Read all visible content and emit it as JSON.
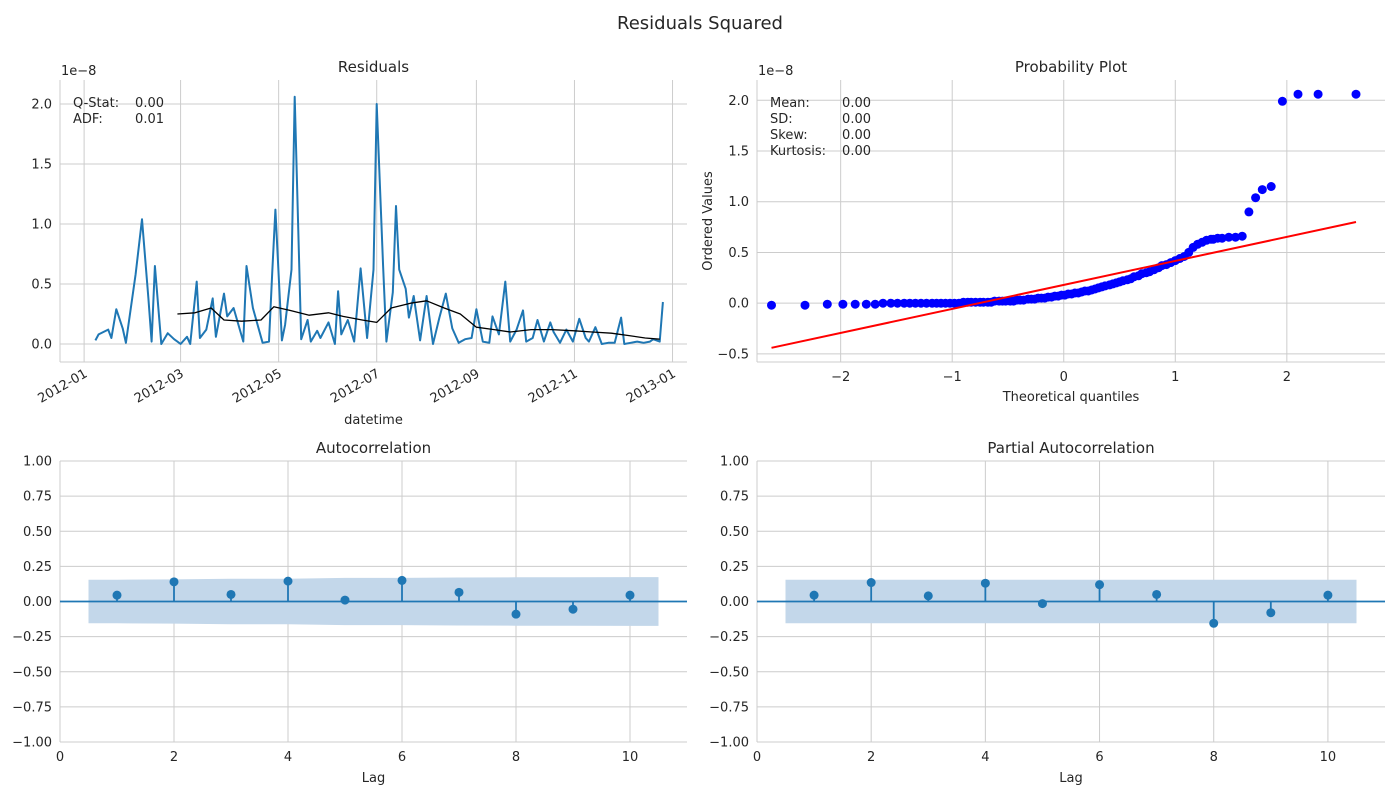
{
  "figure": {
    "title": "Residuals Squared"
  },
  "chart_data": [
    {
      "id": "residuals",
      "type": "line",
      "title": "Residuals",
      "xlabel": "datetime",
      "ylabel": "",
      "y_offset_label": "1e−8",
      "x_is_date": true,
      "xlim": [
        "2011-12-17",
        "2013-01-10"
      ],
      "ylim": [
        -0.15,
        2.2
      ],
      "xticks": [
        "2012-01-01",
        "2012-03-01",
        "2012-05-01",
        "2012-07-01",
        "2012-09-01",
        "2012-11-01",
        "2013-01-01"
      ],
      "xtick_labels": [
        "2012-01",
        "2012-03",
        "2012-05",
        "2012-07",
        "2012-09",
        "2012-11",
        "2013-01"
      ],
      "yticks": [
        0.0,
        0.5,
        1.0,
        1.5,
        2.0
      ],
      "ytick_labels": [
        "0.0",
        "0.5",
        "1.0",
        "1.5",
        "2.0"
      ],
      "stats": [
        {
          "label": "Q-Stat:",
          "value": "0.00"
        },
        {
          "label": "ADF:",
          "value": "0.01"
        }
      ],
      "series": [
        {
          "color": "#1f77b4",
          "x": [
            "2012-01-08",
            "2012-01-10",
            "2012-01-16",
            "2012-01-18",
            "2012-01-21",
            "2012-01-25",
            "2012-01-27",
            "2012-02-02",
            "2012-02-06",
            "2012-02-10",
            "2012-02-12",
            "2012-02-14",
            "2012-02-18",
            "2012-02-22",
            "2012-02-26",
            "2012-02-28",
            "2012-03-01",
            "2012-03-05",
            "2012-03-07",
            "2012-03-11",
            "2012-03-13",
            "2012-03-17",
            "2012-03-21",
            "2012-03-23",
            "2012-03-28",
            "2012-03-30",
            "2012-04-03",
            "2012-04-09",
            "2012-04-11",
            "2012-04-15",
            "2012-04-21",
            "2012-04-25",
            "2012-04-27",
            "2012-04-29",
            "2012-05-03",
            "2012-05-05",
            "2012-05-09",
            "2012-05-11",
            "2012-05-15",
            "2012-05-19",
            "2012-05-21",
            "2012-05-25",
            "2012-05-27",
            "2012-06-01",
            "2012-06-05",
            "2012-06-07",
            "2012-06-09",
            "2012-06-13",
            "2012-06-17",
            "2012-06-21",
            "2012-06-25",
            "2012-06-29",
            "2012-07-01",
            "2012-07-05",
            "2012-07-07",
            "2012-07-11",
            "2012-07-13",
            "2012-07-15",
            "2012-07-19",
            "2012-07-21",
            "2012-07-24",
            "2012-07-28",
            "2012-08-01",
            "2012-08-05",
            "2012-08-09",
            "2012-08-13",
            "2012-08-17",
            "2012-08-21",
            "2012-08-25",
            "2012-08-29",
            "2012-09-01",
            "2012-09-05",
            "2012-09-09",
            "2012-09-11",
            "2012-09-15",
            "2012-09-19",
            "2012-09-22",
            "2012-09-26",
            "2012-09-30",
            "2012-10-02",
            "2012-10-06",
            "2012-10-09",
            "2012-10-13",
            "2012-10-17",
            "2012-10-19",
            "2012-10-23",
            "2012-10-27",
            "2012-10-31",
            "2012-11-04",
            "2012-11-08",
            "2012-11-10",
            "2012-11-14",
            "2012-11-18",
            "2012-11-22",
            "2012-11-26",
            "2012-11-30",
            "2012-12-02",
            "2012-12-06",
            "2012-12-10",
            "2012-12-14",
            "2012-12-18",
            "2012-12-20",
            "2012-12-24",
            "2012-12-26"
          ],
          "y": [
            0.03,
            0.08,
            0.12,
            0.05,
            0.29,
            0.13,
            0.01,
            0.58,
            1.04,
            0.38,
            0.02,
            0.65,
            0.0,
            0.09,
            0.04,
            0.02,
            0.0,
            0.06,
            0.0,
            0.52,
            0.05,
            0.12,
            0.38,
            0.06,
            0.42,
            0.23,
            0.3,
            0.02,
            0.65,
            0.3,
            0.01,
            0.02,
            0.59,
            1.12,
            0.03,
            0.16,
            0.62,
            2.06,
            0.04,
            0.2,
            0.02,
            0.11,
            0.05,
            0.18,
            0.0,
            0.44,
            0.08,
            0.2,
            0.02,
            0.63,
            0.05,
            0.62,
            2.0,
            0.65,
            0.02,
            0.43,
            1.15,
            0.62,
            0.46,
            0.22,
            0.4,
            0.03,
            0.4,
            0.0,
            0.22,
            0.42,
            0.13,
            0.01,
            0.04,
            0.05,
            0.29,
            0.02,
            0.01,
            0.23,
            0.08,
            0.52,
            0.02,
            0.12,
            0.28,
            0.02,
            0.05,
            0.2,
            0.02,
            0.18,
            0.1,
            0.01,
            0.12,
            0.02,
            0.21,
            0.05,
            0.02,
            0.14,
            0.0,
            0.01,
            0.01,
            0.22,
            0.0,
            0.01,
            0.02,
            0.01,
            0.02,
            0.04,
            0.02,
            0.35
          ]
        },
        {
          "color": "#000000",
          "x": [
            "2012-02-28",
            "2012-03-10",
            "2012-03-20",
            "2012-03-28",
            "2012-04-08",
            "2012-04-20",
            "2012-04-28",
            "2012-05-08",
            "2012-05-20",
            "2012-06-01",
            "2012-06-10",
            "2012-06-22",
            "2012-07-01",
            "2012-07-10",
            "2012-07-22",
            "2012-08-01",
            "2012-08-12",
            "2012-08-22",
            "2012-09-01",
            "2012-09-12",
            "2012-09-22",
            "2012-10-05",
            "2012-10-18",
            "2012-11-01",
            "2012-11-12",
            "2012-11-24",
            "2012-12-05",
            "2012-12-15",
            "2012-12-24"
          ],
          "y": [
            0.25,
            0.26,
            0.3,
            0.2,
            0.19,
            0.2,
            0.31,
            0.28,
            0.24,
            0.26,
            0.23,
            0.2,
            0.18,
            0.3,
            0.34,
            0.36,
            0.3,
            0.25,
            0.14,
            0.12,
            0.1,
            0.12,
            0.12,
            0.11,
            0.1,
            0.09,
            0.07,
            0.05,
            0.04
          ]
        }
      ]
    },
    {
      "id": "probplot",
      "type": "scatter",
      "title": "Probability Plot",
      "xlabel": "Theoretical quantiles",
      "ylabel": "Ordered Values",
      "y_offset_label": "1e−8",
      "xlim": [
        -2.75,
        2.88
      ],
      "ylim": [
        -0.58,
        2.2
      ],
      "xticks": [
        -2,
        -1,
        0,
        1,
        2
      ],
      "xtick_labels": [
        "−2",
        "−1",
        "0",
        "1",
        "2"
      ],
      "yticks": [
        -0.5,
        0.0,
        0.5,
        1.0,
        1.5,
        2.0
      ],
      "ytick_labels": [
        "−0.5",
        "0.0",
        "0.5",
        "1.0",
        "1.5",
        "2.0"
      ],
      "stats": [
        {
          "label": "Mean:",
          "value": "0.00"
        },
        {
          "label": "SD:",
          "value": "0.00"
        },
        {
          "label": "Skew:",
          "value": "0.00"
        },
        {
          "label": "Kurtosis:",
          "value": "0.00"
        }
      ],
      "points_color": "#0000ff",
      "line_color": "#ff0000",
      "fit_line": {
        "x": [
          -2.62,
          2.62
        ],
        "y": [
          -0.44,
          0.8
        ]
      },
      "points": {
        "x": [
          -2.62,
          -2.32,
          -2.12,
          -1.98,
          -1.87,
          -1.77,
          -1.69,
          -1.62,
          -1.55,
          -1.49,
          -1.43,
          -1.38,
          -1.33,
          -1.28,
          -1.23,
          -1.18,
          -1.14,
          -1.1,
          -1.06,
          -1.02,
          -0.98,
          -0.94,
          -0.9,
          -0.86,
          -0.83,
          -0.79,
          -0.75,
          -0.72,
          -0.68,
          -0.65,
          -0.62,
          -0.58,
          -0.55,
          -0.52,
          -0.48,
          -0.45,
          -0.42,
          -0.39,
          -0.36,
          -0.32,
          -0.29,
          -0.26,
          -0.23,
          -0.2,
          -0.17,
          -0.14,
          -0.11,
          -0.08,
          -0.05,
          -0.02,
          0.01,
          0.04,
          0.07,
          0.1,
          0.13,
          0.16,
          0.19,
          0.22,
          0.25,
          0.28,
          0.31,
          0.34,
          0.37,
          0.41,
          0.44,
          0.47,
          0.5,
          0.53,
          0.57,
          0.6,
          0.63,
          0.67,
          0.7,
          0.74,
          0.77,
          0.81,
          0.85,
          0.88,
          0.92,
          0.96,
          1.0,
          1.04,
          1.08,
          1.12,
          1.16,
          1.2,
          1.24,
          1.28,
          1.32,
          1.34,
          1.38,
          1.42,
          1.48,
          1.54,
          1.6,
          1.66,
          1.72,
          1.78,
          1.86,
          1.96,
          2.1,
          2.28,
          2.62
        ],
        "y": [
          -0.02,
          -0.02,
          -0.01,
          -0.01,
          -0.01,
          -0.01,
          -0.01,
          0.0,
          0.0,
          0.0,
          0.0,
          0.0,
          0.0,
          0.0,
          0.0,
          0.0,
          0.0,
          0.0,
          0.0,
          0.0,
          0.0,
          0.0,
          0.01,
          0.01,
          0.01,
          0.01,
          0.01,
          0.01,
          0.01,
          0.01,
          0.02,
          0.02,
          0.02,
          0.02,
          0.02,
          0.02,
          0.03,
          0.03,
          0.03,
          0.04,
          0.04,
          0.04,
          0.05,
          0.05,
          0.05,
          0.06,
          0.06,
          0.07,
          0.07,
          0.08,
          0.08,
          0.09,
          0.09,
          0.1,
          0.1,
          0.11,
          0.12,
          0.12,
          0.13,
          0.14,
          0.15,
          0.16,
          0.17,
          0.18,
          0.19,
          0.2,
          0.21,
          0.22,
          0.23,
          0.24,
          0.26,
          0.27,
          0.29,
          0.3,
          0.31,
          0.33,
          0.35,
          0.37,
          0.38,
          0.4,
          0.42,
          0.44,
          0.46,
          0.5,
          0.55,
          0.58,
          0.6,
          0.62,
          0.63,
          0.63,
          0.64,
          0.64,
          0.65,
          0.65,
          0.66,
          0.9,
          1.04,
          1.12,
          1.15,
          1.99,
          2.06,
          2.06,
          2.06
        ]
      }
    },
    {
      "id": "acf",
      "type": "scatter",
      "subtype": "stem",
      "title": "Autocorrelation",
      "xlabel": "Lag",
      "ylabel": "",
      "xlim": [
        0,
        11
      ],
      "ylim": [
        -1.0,
        1.0
      ],
      "xticks": [
        0,
        2,
        4,
        6,
        8,
        10
      ],
      "xtick_labels": [
        "0",
        "2",
        "4",
        "6",
        "8",
        "10"
      ],
      "yticks": [
        -1.0,
        -0.75,
        -0.5,
        -0.25,
        0.0,
        0.25,
        0.5,
        0.75,
        1.0
      ],
      "ytick_labels": [
        "−1.00",
        "−0.75",
        "−0.50",
        "−0.25",
        "0.00",
        "0.25",
        "0.50",
        "0.75",
        "1.00"
      ],
      "color": "#1f77b4",
      "band_color": "#c3d7ea",
      "lags": [
        1,
        2,
        3,
        4,
        5,
        6,
        7,
        8,
        9,
        10
      ],
      "values": [
        0.045,
        0.14,
        0.05,
        0.145,
        0.01,
        0.15,
        0.065,
        -0.09,
        -0.055,
        0.045
      ],
      "conf_band": {
        "x": [
          0.5,
          1,
          2,
          3,
          4,
          5,
          6,
          7,
          8,
          9,
          10,
          10.5
        ],
        "upper": [
          0.155,
          0.155,
          0.157,
          0.162,
          0.162,
          0.168,
          0.168,
          0.171,
          0.172,
          0.173,
          0.174,
          0.174
        ],
        "lower": [
          -0.155,
          -0.155,
          -0.157,
          -0.162,
          -0.162,
          -0.168,
          -0.168,
          -0.171,
          -0.172,
          -0.173,
          -0.174,
          -0.174
        ]
      }
    },
    {
      "id": "pacf",
      "type": "scatter",
      "subtype": "stem",
      "title": "Partial Autocorrelation",
      "xlabel": "Lag",
      "ylabel": "",
      "xlim": [
        0,
        11
      ],
      "ylim": [
        -1.0,
        1.0
      ],
      "xticks": [
        0,
        2,
        4,
        6,
        8,
        10
      ],
      "xtick_labels": [
        "0",
        "2",
        "4",
        "6",
        "8",
        "10"
      ],
      "yticks": [
        -1.0,
        -0.75,
        -0.5,
        -0.25,
        0.0,
        0.25,
        0.5,
        0.75,
        1.0
      ],
      "ytick_labels": [
        "−1.00",
        "−0.75",
        "−0.50",
        "−0.25",
        "0.00",
        "0.25",
        "0.50",
        "0.75",
        "1.00"
      ],
      "color": "#1f77b4",
      "band_color": "#c3d7ea",
      "lags": [
        1,
        2,
        3,
        4,
        5,
        6,
        7,
        8,
        9,
        10
      ],
      "values": [
        0.045,
        0.135,
        0.04,
        0.13,
        -0.015,
        0.12,
        0.05,
        -0.155,
        -0.08,
        0.045
      ],
      "conf_band": {
        "x": [
          0.5,
          10.5
        ],
        "upper": [
          0.155,
          0.155
        ],
        "lower": [
          -0.155,
          -0.155
        ]
      }
    }
  ]
}
